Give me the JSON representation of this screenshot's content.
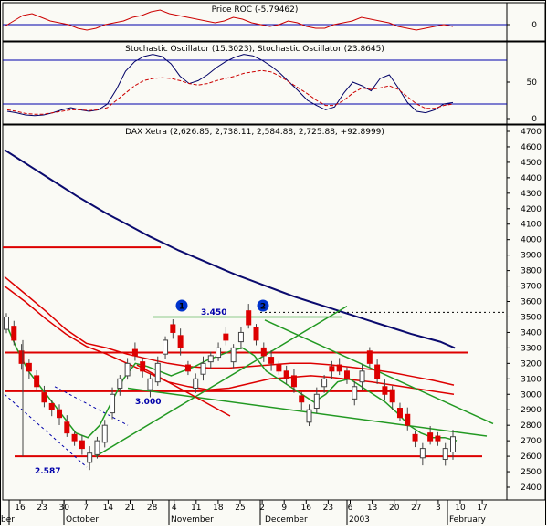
{
  "chart_data": [
    {
      "type": "line",
      "title": "Price ROC (-5.79462)",
      "y_ticks": [
        0
      ],
      "zero_line": true,
      "series": [
        {
          "color": "#cc0000",
          "values": [
            -0.5,
            1,
            2.5,
            3,
            2,
            1,
            0.5,
            0,
            -1,
            -1.5,
            -1,
            0,
            0.5,
            1,
            2,
            2.5,
            3.5,
            4,
            3,
            2.5,
            2,
            1.5,
            1,
            0.5,
            1,
            2,
            1.5,
            0.5,
            0,
            -0.5,
            0,
            1,
            0.5,
            -0.5,
            -1,
            -1,
            0,
            0.5,
            1,
            2,
            1.5,
            1,
            0.5,
            -0.5,
            -1,
            -1.5,
            -1,
            -0.5,
            0,
            -0.5
          ]
        }
      ]
    },
    {
      "type": "line",
      "title": "Stochastic Oscillator (15.3023), Stochastic Oscillator (23.8645)",
      "ylim": [
        0,
        100
      ],
      "y_ticks": [
        0,
        50
      ],
      "ref_lines": [
        20,
        80
      ],
      "series": [
        {
          "color": "#000066",
          "values": [
            10,
            8,
            5,
            4,
            5,
            8,
            12,
            15,
            12,
            10,
            12,
            20,
            40,
            65,
            78,
            85,
            88,
            85,
            75,
            58,
            48,
            52,
            60,
            70,
            78,
            84,
            88,
            86,
            80,
            72,
            62,
            50,
            38,
            25,
            18,
            12,
            16,
            35,
            50,
            45,
            38,
            55,
            60,
            42,
            22,
            10,
            8,
            12,
            20,
            22
          ]
        },
        {
          "color": "#cc0000",
          "values": [
            12,
            10,
            7,
            6,
            6,
            8,
            10,
            12,
            12,
            11,
            12,
            15,
            25,
            35,
            45,
            52,
            55,
            56,
            55,
            52,
            48,
            46,
            48,
            52,
            55,
            58,
            62,
            64,
            66,
            64,
            58,
            50,
            42,
            34,
            25,
            18,
            18,
            25,
            35,
            42,
            40,
            42,
            45,
            40,
            30,
            20,
            14,
            14,
            18,
            20
          ]
        }
      ]
    },
    {
      "type": "candlestick",
      "title": "DAX Xetra (2,626.85, 2,738.11, 2,584.88, 2,725.88, +92.8999)",
      "ylim": [
        2400,
        4700
      ],
      "y_ticks": [
        2400,
        2500,
        2600,
        2700,
        2800,
        2900,
        3000,
        3100,
        3200,
        3300,
        3400,
        3500,
        3600,
        3700,
        3800,
        3900,
        4000,
        4100,
        4200,
        4300,
        4400,
        4500,
        4600,
        4700
      ],
      "x_ticks": [
        "16",
        "23",
        "30",
        "7",
        "14",
        "21",
        "28",
        "4",
        "11",
        "18",
        "25",
        "2",
        "9",
        "16",
        "23",
        "6",
        "13",
        "20",
        "27",
        "3",
        "10",
        "17"
      ],
      "x_month_labels": [
        "ber",
        "October",
        "November",
        "December",
        "2003",
        "February"
      ],
      "close": [
        3500,
        3350,
        3200,
        3150,
        3050,
        2950,
        2900,
        2850,
        2750,
        2700,
        2650,
        2620,
        2700,
        2800,
        3000,
        3100,
        3200,
        3250,
        3150,
        3100,
        3200,
        3350,
        3400,
        3300,
        3150,
        3100,
        3200,
        3250,
        3300,
        3350,
        3300,
        3400,
        3450,
        3350,
        3250,
        3200,
        3150,
        3100,
        3050,
        2950,
        2900,
        3000,
        3100,
        3150,
        3150,
        3100,
        3050,
        3150,
        3200,
        3100,
        3000,
        2950,
        2850,
        2800,
        2700,
        2650,
        2700,
        2700,
        2650,
        2726
      ],
      "open_offset": [
        -80,
        90,
        80,
        50,
        70,
        60,
        40,
        50,
        70,
        40,
        50,
        -60,
        -90,
        -110,
        -120,
        -60,
        -80,
        40,
        60,
        -70,
        -120,
        -90,
        50,
        80,
        40,
        -60,
        -70,
        -40,
        -60,
        40,
        -90,
        -60,
        90,
        80,
        50,
        40,
        40,
        50,
        70,
        40,
        -80,
        -90,
        -50,
        30,
        40,
        50,
        -80,
        -70,
        80,
        90,
        50,
        80,
        60,
        70,
        40,
        -60,
        50,
        30,
        -70,
        -99
      ],
      "series": [
        {
          "name": "moving average long (navy)",
          "color": "#0a0a6e",
          "values": [
            4580,
            4520,
            4460,
            4400,
            4340,
            4280,
            4225,
            4170,
            4120,
            4070,
            4020,
            3975,
            3930,
            3890,
            3850,
            3810,
            3770,
            3735,
            3700,
            3665,
            3630,
            3600,
            3570,
            3540,
            3510,
            3480,
            3450,
            3420,
            3390,
            3365,
            3340,
            3300
          ]
        },
        {
          "name": "moving average (red A)",
          "color": "#dd0000",
          "values": [
            3760,
            3650,
            3540,
            3420,
            3330,
            3300,
            3260,
            3230,
            3200,
            3180,
            3170,
            3170,
            3180,
            3190,
            3200,
            3200,
            3190,
            3175,
            3160,
            3140,
            3115,
            3090,
            3060
          ]
        },
        {
          "name": "moving average (red B)",
          "color": "#dd0000",
          "values": [
            3700,
            3600,
            3490,
            3390,
            3310,
            3260,
            3200,
            3140,
            3080,
            3050,
            3030,
            3040,
            3070,
            3100,
            3110,
            3120,
            3110,
            3095,
            3080,
            3060,
            3040,
            3020,
            3000
          ]
        },
        {
          "name": "moving average short (green)",
          "color": "#229922",
          "values": [
            3480,
            3300,
            3150,
            3050,
            2950,
            2850,
            2750,
            2720,
            2800,
            2950,
            3100,
            3200,
            3180,
            3150,
            3120,
            3150,
            3180,
            3220,
            3250,
            3280,
            3300,
            3250,
            3150,
            3100,
            3050,
            3000,
            2950,
            3000,
            3080,
            3100,
            3050,
            3000,
            2950,
            2880,
            2800,
            2750,
            2720,
            2720,
            2700
          ]
        }
      ],
      "annotations": [
        {
          "text": "3.450"
        },
        {
          "text": "3.000"
        },
        {
          "text": "2.587"
        }
      ],
      "markers": [
        "1",
        "2"
      ],
      "support_resistance_levels": [
        3270,
        3020,
        2600,
        3530,
        3950
      ],
      "trendlines": [
        {
          "color": "#229922",
          "from": [
            "7 Oct",
            2600
          ],
          "to": [
            "23 Dec",
            3570
          ]
        },
        {
          "color": "#229922",
          "from": [
            "2 Dec",
            3480
          ],
          "to": [
            "17 Feb",
            2810
          ]
        },
        {
          "color": "#229922",
          "from": [
            "23 Sep",
            3040
          ],
          "to": [
            "13 Feb",
            2730
          ]
        },
        {
          "color": "#dd0000",
          "from": [
            "21 Oct",
            3190
          ],
          "to": [
            "8 Nov",
            2860
          ]
        }
      ]
    }
  ]
}
